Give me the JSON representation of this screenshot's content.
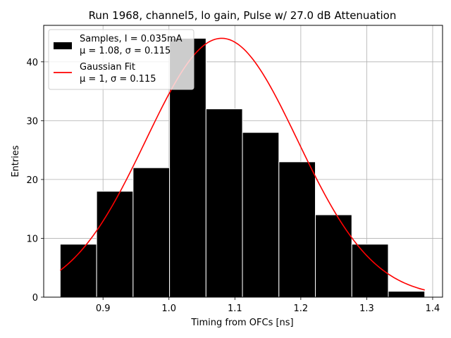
{
  "chart_data": {
    "type": "bar",
    "title": "Run 1968, channel5, lo gain, Pulse w/ 27.0 dB Attenuation",
    "xlabel": "Timing from OFCs [ns]",
    "ylabel": "Entries",
    "xlim": [
      0.81,
      1.415
    ],
    "ylim": [
      0,
      46.2
    ],
    "xticks": [
      0.9,
      1.0,
      1.1,
      1.2,
      1.3,
      1.4
    ],
    "xtick_labels": [
      "0.9",
      "1.0",
      "1.1",
      "1.2",
      "1.3",
      "1.4"
    ],
    "yticks": [
      0,
      10,
      20,
      30,
      40
    ],
    "ytick_labels": [
      "0",
      "10",
      "20",
      "30",
      "40"
    ],
    "grid": true,
    "legend_position": "top-left",
    "histogram": {
      "bin_edges": [
        0.835,
        0.8903,
        0.9456,
        1.0009,
        1.0562,
        1.1115,
        1.1668,
        1.2221,
        1.2774,
        1.3327,
        1.388
      ],
      "counts": [
        9,
        18,
        22,
        44,
        32,
        28,
        23,
        14,
        9,
        1
      ],
      "color": "#000000",
      "edge_color": "#ffffff"
    },
    "gaussian_fit": {
      "mu": 1.08,
      "sigma": 0.115,
      "peak": 44,
      "x_range": [
        0.835,
        1.388
      ],
      "color": "#ff0000"
    },
    "legend": [
      {
        "label_line1": "Samples, I = 0.035mA",
        "label_line2": "μ = 1.08, σ = 0.115",
        "swatch": "patch",
        "color": "#000000"
      },
      {
        "label_line1": "Gaussian Fit",
        "label_line2": "μ = 1, σ = 0.115",
        "swatch": "line",
        "color": "#ff0000"
      }
    ]
  }
}
